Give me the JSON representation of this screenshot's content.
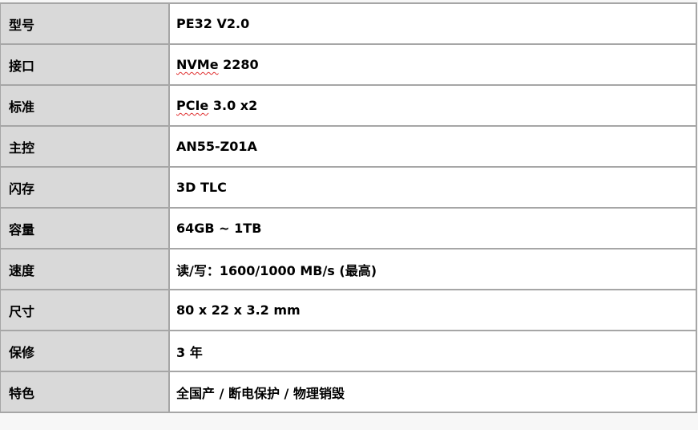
{
  "rows": [
    {
      "label": "型号",
      "value": "PE32 V2.0"
    },
    {
      "label": "接口",
      "value_marked": "NVMe",
      "value_rest": " 2280"
    },
    {
      "label": "标准",
      "value_marked": "PCIe",
      "value_rest": " 3.0 x2"
    },
    {
      "label": "主控",
      "value": "AN55-Z01A"
    },
    {
      "label": "闪存",
      "value": "3D TLC"
    },
    {
      "label": "容量",
      "value": "64GB ~ 1TB"
    },
    {
      "label": "速度",
      "value": "读/写：1600/1000 MB/s (最高)"
    },
    {
      "label": "尺寸",
      "value": "80 x 22 x 3.2 mm"
    },
    {
      "label": "保修",
      "value": "3 年"
    },
    {
      "label": "特色",
      "value": "全国产 / 断电保护 / 物理销毁"
    }
  ]
}
